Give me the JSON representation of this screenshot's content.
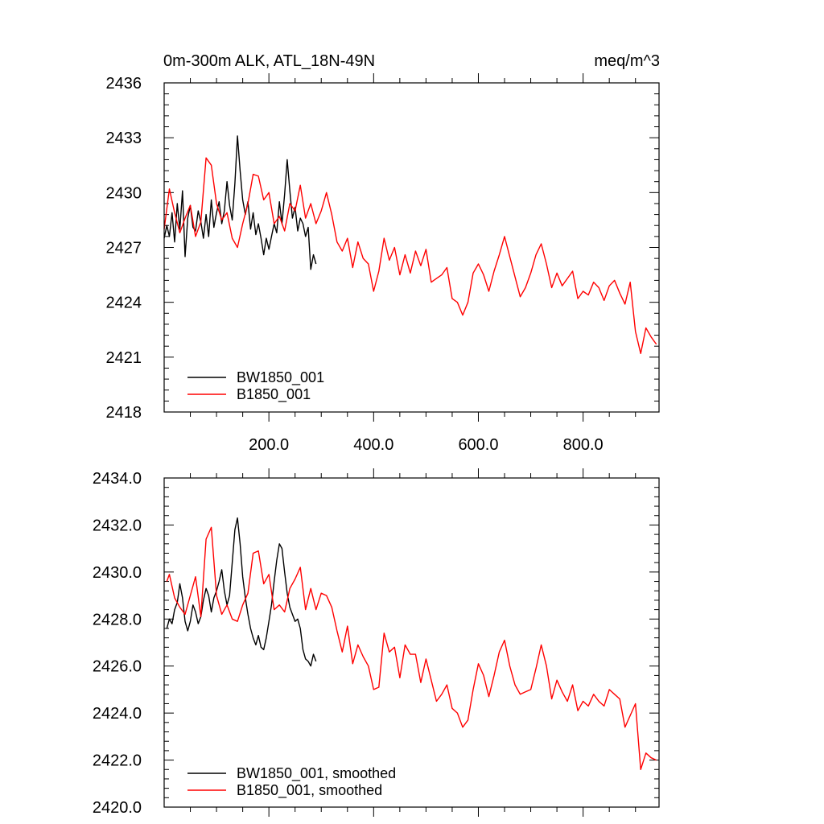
{
  "chart_data": [
    {
      "type": "line",
      "title_left": "0m-300m ALK, ATL_18N-49N",
      "title_right": "meq/m^3",
      "xlabel": "",
      "ylabel": "",
      "xlim": [
        0,
        945
      ],
      "ylim": [
        2418,
        2436
      ],
      "xticks": [
        200,
        400,
        600,
        800
      ],
      "xtick_labels": [
        "200.0",
        "400.0",
        "600.0",
        "800.0"
      ],
      "yticks": [
        2418,
        2421,
        2424,
        2427,
        2430,
        2433,
        2436
      ],
      "ytick_labels": [
        "2418",
        "2421",
        "2424",
        "2427",
        "2430",
        "2433",
        "2436"
      ],
      "legend_position": "bottom-left",
      "series": [
        {
          "name": "BW1850_001",
          "color": "#000000",
          "x": [
            0,
            5,
            10,
            15,
            20,
            25,
            30,
            35,
            40,
            45,
            50,
            55,
            60,
            65,
            70,
            75,
            80,
            85,
            90,
            95,
            100,
            105,
            110,
            115,
            120,
            125,
            130,
            135,
            140,
            145,
            150,
            155,
            160,
            165,
            170,
            175,
            180,
            185,
            190,
            195,
            200,
            205,
            210,
            215,
            220,
            225,
            230,
            235,
            240,
            245,
            250,
            255,
            260,
            265,
            270,
            275,
            280,
            285,
            290
          ],
          "values": [
            2427.5,
            2428.2,
            2427.6,
            2428.9,
            2427.3,
            2429.4,
            2428.0,
            2430.1,
            2426.5,
            2428.6,
            2429.3,
            2428.1,
            2427.9,
            2429.0,
            2428.4,
            2427.5,
            2428.8,
            2427.6,
            2429.6,
            2428.1,
            2428.9,
            2429.5,
            2428.3,
            2429.0,
            2430.6,
            2429.3,
            2428.5,
            2430.5,
            2433.1,
            2431.2,
            2429.6,
            2428.8,
            2429.5,
            2428.0,
            2428.9,
            2427.7,
            2428.3,
            2427.5,
            2426.6,
            2427.5,
            2426.9,
            2427.6,
            2428.3,
            2427.8,
            2429.5,
            2428.3,
            2429.9,
            2431.8,
            2430.1,
            2428.6,
            2429.2,
            2427.9,
            2428.6,
            2428.3,
            2427.6,
            2428.1,
            2425.8,
            2426.6,
            2426.1
          ]
        },
        {
          "name": "B1850_001",
          "color": "#ff0000",
          "x": [
            0,
            10,
            20,
            30,
            40,
            50,
            60,
            70,
            80,
            90,
            100,
            110,
            120,
            130,
            140,
            150,
            160,
            170,
            180,
            190,
            200,
            210,
            220,
            230,
            240,
            250,
            260,
            270,
            280,
            290,
            300,
            310,
            320,
            330,
            340,
            350,
            360,
            370,
            380,
            390,
            400,
            410,
            420,
            430,
            440,
            450,
            460,
            470,
            480,
            490,
            500,
            510,
            520,
            530,
            540,
            550,
            560,
            570,
            580,
            590,
            600,
            610,
            620,
            630,
            640,
            650,
            660,
            670,
            680,
            690,
            700,
            710,
            720,
            730,
            740,
            750,
            760,
            770,
            780,
            790,
            800,
            810,
            820,
            830,
            840,
            850,
            860,
            870,
            880,
            890,
            900,
            910,
            920,
            930,
            940
          ],
          "values": [
            2428.0,
            2430.2,
            2428.9,
            2427.8,
            2428.6,
            2429.3,
            2427.6,
            2428.4,
            2431.9,
            2431.5,
            2429.4,
            2428.5,
            2428.9,
            2427.5,
            2427.0,
            2428.3,
            2429.4,
            2431.0,
            2430.9,
            2429.6,
            2430.0,
            2428.3,
            2428.7,
            2427.9,
            2429.4,
            2429.0,
            2430.4,
            2428.6,
            2429.4,
            2428.3,
            2429.0,
            2430.0,
            2428.8,
            2427.3,
            2426.8,
            2427.5,
            2425.9,
            2427.3,
            2426.4,
            2426.1,
            2424.6,
            2425.7,
            2427.5,
            2426.3,
            2427.0,
            2425.5,
            2426.6,
            2425.6,
            2426.8,
            2426.0,
            2426.9,
            2425.1,
            2425.3,
            2425.5,
            2425.9,
            2424.2,
            2424.0,
            2423.3,
            2424.0,
            2425.6,
            2426.1,
            2425.5,
            2424.6,
            2425.7,
            2426.6,
            2427.6,
            2426.5,
            2425.4,
            2424.3,
            2424.8,
            2425.6,
            2426.6,
            2427.2,
            2426.1,
            2424.8,
            2425.6,
            2424.9,
            2425.3,
            2425.7,
            2424.2,
            2424.6,
            2424.4,
            2425.1,
            2424.8,
            2424.1,
            2424.9,
            2425.2,
            2424.5,
            2423.9,
            2425.1,
            2422.4,
            2421.2,
            2422.6,
            2422.1,
            2421.7
          ]
        }
      ]
    },
    {
      "type": "line",
      "title_left": "",
      "title_right": "",
      "xlabel": "",
      "ylabel": "",
      "xlim": [
        0,
        945
      ],
      "ylim": [
        2420,
        2434
      ],
      "xticks": [
        200,
        400,
        600,
        800
      ],
      "xtick_labels": [],
      "yticks": [
        2420,
        2422,
        2424,
        2426,
        2428,
        2430,
        2432,
        2434
      ],
      "ytick_labels": [
        "2420.0",
        "2422.0",
        "2424.0",
        "2426.0",
        "2428.0",
        "2430.0",
        "2432.0",
        "2434.0"
      ],
      "legend_position": "bottom-left",
      "series": [
        {
          "name": "BW1850_001, smoothed",
          "color": "#000000",
          "x": [
            5,
            10,
            15,
            20,
            25,
            30,
            35,
            40,
            45,
            50,
            55,
            60,
            65,
            70,
            75,
            80,
            85,
            90,
            95,
            100,
            105,
            110,
            115,
            120,
            125,
            130,
            135,
            140,
            145,
            150,
            155,
            160,
            165,
            170,
            175,
            180,
            185,
            190,
            195,
            200,
            205,
            210,
            215,
            220,
            225,
            230,
            235,
            240,
            245,
            250,
            255,
            260,
            265,
            270,
            275,
            280,
            285,
            290
          ],
          "values": [
            2427.6,
            2428.0,
            2427.8,
            2428.4,
            2428.7,
            2429.5,
            2428.9,
            2427.9,
            2427.5,
            2427.9,
            2428.6,
            2428.3,
            2427.8,
            2428.1,
            2428.8,
            2429.3,
            2429.0,
            2428.3,
            2428.9,
            2429.2,
            2429.6,
            2430.1,
            2429.2,
            2428.6,
            2429.0,
            2430.4,
            2431.8,
            2432.3,
            2431.2,
            2429.8,
            2428.9,
            2428.2,
            2427.6,
            2427.2,
            2426.9,
            2427.3,
            2426.8,
            2426.7,
            2427.2,
            2427.9,
            2428.6,
            2429.6,
            2430.5,
            2431.2,
            2431.0,
            2430.0,
            2429.1,
            2428.5,
            2428.2,
            2427.9,
            2428.0,
            2427.6,
            2426.7,
            2426.3,
            2426.2,
            2426.0,
            2426.5,
            2426.2
          ]
        },
        {
          "name": "B1850_001, smoothed",
          "color": "#ff0000",
          "x": [
            5,
            10,
            20,
            30,
            40,
            50,
            60,
            70,
            80,
            90,
            100,
            110,
            120,
            130,
            140,
            150,
            160,
            170,
            180,
            190,
            200,
            210,
            220,
            230,
            240,
            250,
            260,
            270,
            280,
            290,
            300,
            310,
            320,
            330,
            340,
            350,
            360,
            370,
            380,
            390,
            400,
            410,
            420,
            430,
            440,
            450,
            460,
            470,
            480,
            490,
            500,
            510,
            520,
            530,
            540,
            550,
            560,
            570,
            580,
            590,
            600,
            610,
            620,
            630,
            640,
            650,
            660,
            670,
            680,
            690,
            700,
            710,
            720,
            730,
            740,
            750,
            760,
            770,
            780,
            790,
            800,
            810,
            820,
            830,
            840,
            850,
            860,
            870,
            880,
            890,
            900,
            910,
            920,
            930,
            940
          ],
          "values": [
            2429.6,
            2429.9,
            2428.9,
            2428.5,
            2428.2,
            2429.0,
            2429.8,
            2428.1,
            2431.4,
            2431.9,
            2429.0,
            2428.2,
            2428.6,
            2428.0,
            2427.9,
            2428.6,
            2429.1,
            2430.8,
            2430.9,
            2429.5,
            2429.9,
            2428.4,
            2428.6,
            2428.3,
            2429.3,
            2429.7,
            2430.2,
            2428.4,
            2429.3,
            2428.4,
            2429.1,
            2429.0,
            2428.5,
            2427.5,
            2426.6,
            2427.7,
            2426.1,
            2426.9,
            2426.4,
            2426.0,
            2425.0,
            2425.1,
            2427.4,
            2426.6,
            2426.8,
            2425.5,
            2426.9,
            2426.5,
            2426.5,
            2425.3,
            2426.3,
            2425.4,
            2424.5,
            2424.8,
            2425.2,
            2424.2,
            2424.0,
            2423.4,
            2423.7,
            2425.0,
            2426.1,
            2425.6,
            2424.7,
            2425.6,
            2426.6,
            2427.1,
            2426.0,
            2425.2,
            2424.8,
            2424.9,
            2425.0,
            2425.9,
            2426.9,
            2426.0,
            2424.6,
            2425.4,
            2424.9,
            2424.5,
            2425.2,
            2424.1,
            2424.5,
            2424.3,
            2424.8,
            2424.5,
            2424.3,
            2425.0,
            2424.8,
            2424.6,
            2423.4,
            2423.9,
            2424.4,
            2421.6,
            2422.3,
            2422.1,
            2422.0
          ]
        }
      ]
    }
  ]
}
